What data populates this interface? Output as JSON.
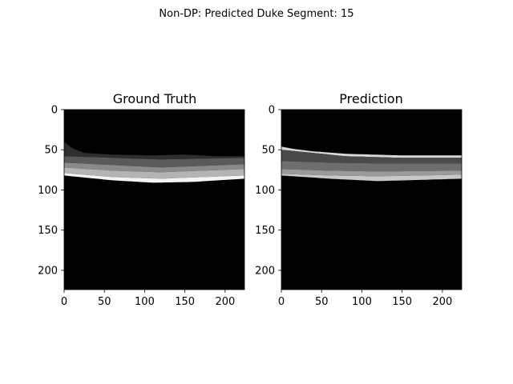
{
  "figure_title": "Non-DP: Predicted Duke Segment: 15",
  "chart_data": [
    {
      "type": "heatmap",
      "title": "Ground Truth",
      "colormap": "grayscale",
      "xlim": [
        0,
        224
      ],
      "ylim": [
        224,
        0
      ],
      "xticks": [
        0,
        50,
        100,
        150,
        200
      ],
      "yticks": [
        0,
        50,
        100,
        150,
        200
      ],
      "layers": [
        {
          "label": "dark gray band",
          "color": "#2e2e2e",
          "top": [
            [
              0,
              40
            ],
            [
              10,
              48
            ],
            [
              25,
              54
            ],
            [
              60,
              56
            ],
            [
              110,
              57
            ],
            [
              150,
              56
            ],
            [
              190,
              58
            ],
            [
              224,
              58
            ]
          ],
          "bottom": [
            [
              0,
              58
            ],
            [
              60,
              60
            ],
            [
              120,
              62
            ],
            [
              224,
              60
            ]
          ]
        },
        {
          "label": "gray band",
          "color": "#5a5a5a",
          "top": [
            [
              0,
              58
            ],
            [
              60,
              60
            ],
            [
              120,
              62
            ],
            [
              224,
              60
            ]
          ],
          "bottom": [
            [
              0,
              66
            ],
            [
              60,
              69
            ],
            [
              120,
              72
            ],
            [
              224,
              68
            ]
          ]
        },
        {
          "label": "light gray band",
          "color": "#8a8a8a",
          "top": [
            [
              0,
              66
            ],
            [
              60,
              69
            ],
            [
              120,
              72
            ],
            [
              224,
              68
            ]
          ],
          "bottom": [
            [
              0,
              72
            ],
            [
              60,
              76
            ],
            [
              120,
              78
            ],
            [
              224,
              74
            ]
          ]
        },
        {
          "label": "silver band",
          "color": "#b4b4b4",
          "top": [
            [
              0,
              72
            ],
            [
              60,
              76
            ],
            [
              120,
              78
            ],
            [
              224,
              74
            ]
          ],
          "bottom": [
            [
              0,
              79
            ],
            [
              60,
              84
            ],
            [
              120,
              86
            ],
            [
              224,
              82
            ]
          ]
        },
        {
          "label": "white band",
          "color": "#f4f4f4",
          "top": [
            [
              0,
              79
            ],
            [
              60,
              84
            ],
            [
              120,
              86
            ],
            [
              224,
              82
            ]
          ],
          "bottom": [
            [
              0,
              82
            ],
            [
              60,
              88
            ],
            [
              110,
              91
            ],
            [
              160,
              90
            ],
            [
              224,
              86
            ]
          ]
        }
      ]
    },
    {
      "type": "heatmap",
      "title": "Prediction",
      "colormap": "grayscale",
      "xlim": [
        0,
        224
      ],
      "ylim": [
        224,
        0
      ],
      "xticks": [
        0,
        50,
        100,
        150,
        200
      ],
      "yticks": [
        0,
        50,
        100,
        150,
        200
      ],
      "layers": [
        {
          "label": "white edge",
          "color": "#d8d8d8",
          "top": [
            [
              0,
              46
            ],
            [
              15,
              49
            ],
            [
              40,
              52
            ],
            [
              80,
              55
            ],
            [
              150,
              57
            ],
            [
              224,
              57
            ]
          ],
          "bottom": [
            [
              0,
              50
            ],
            [
              40,
              54
            ],
            [
              80,
              58
            ],
            [
              150,
              60
            ],
            [
              224,
              60
            ]
          ]
        },
        {
          "label": "dark gray band",
          "color": "#4a4a4a",
          "top": [
            [
              0,
              50
            ],
            [
              40,
              54
            ],
            [
              80,
              58
            ],
            [
              150,
              60
            ],
            [
              224,
              60
            ]
          ],
          "bottom": [
            [
              0,
              64
            ],
            [
              60,
              66
            ],
            [
              120,
              67
            ],
            [
              224,
              67
            ]
          ]
        },
        {
          "label": "gray band",
          "color": "#6e6e6e",
          "top": [
            [
              0,
              64
            ],
            [
              60,
              66
            ],
            [
              120,
              67
            ],
            [
              224,
              67
            ]
          ],
          "bottom": [
            [
              0,
              74
            ],
            [
              60,
              76
            ],
            [
              120,
              77
            ],
            [
              224,
              76
            ]
          ]
        },
        {
          "label": "light gray band",
          "color": "#9a9a9a",
          "top": [
            [
              0,
              74
            ],
            [
              60,
              76
            ],
            [
              120,
              77
            ],
            [
              224,
              76
            ]
          ],
          "bottom": [
            [
              0,
              80
            ],
            [
              60,
              82
            ],
            [
              120,
              83
            ],
            [
              224,
              81
            ]
          ]
        },
        {
          "label": "silver band",
          "color": "#c8c8c8",
          "top": [
            [
              0,
              80
            ],
            [
              60,
              82
            ],
            [
              120,
              83
            ],
            [
              224,
              81
            ]
          ],
          "bottom": [
            [
              0,
              82
            ],
            [
              60,
              86
            ],
            [
              120,
              89
            ],
            [
              224,
              86
            ]
          ]
        }
      ]
    }
  ]
}
